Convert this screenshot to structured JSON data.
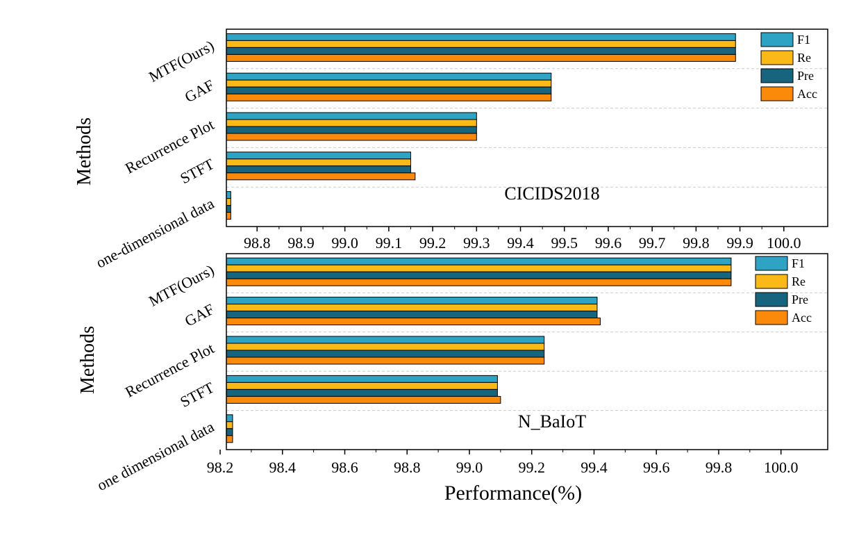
{
  "colors": {
    "F1": "#2ea3c4",
    "Re": "#fbb917",
    "Pre": "#17647e",
    "Acc": "#fb8a0b",
    "frame": "#000000",
    "grid": "#cccccc"
  },
  "chart_data": [
    {
      "type": "bar",
      "orientation": "horizontal",
      "annotation": "CICIDS2018",
      "ylabel": "Methods",
      "xlabel": "",
      "categories": [
        "MTF(Ours)",
        "GAF",
        "Recurrence Plot",
        "STFT",
        "one-dimensional data"
      ],
      "series": [
        {
          "name": "F1",
          "values": [
            99.89,
            99.47,
            99.3,
            99.15,
            98.74
          ]
        },
        {
          "name": "Re",
          "values": [
            99.89,
            99.47,
            99.3,
            99.15,
            98.74
          ]
        },
        {
          "name": "Pre",
          "values": [
            99.89,
            99.47,
            99.3,
            99.15,
            98.74
          ]
        },
        {
          "name": "Acc",
          "values": [
            99.89,
            99.47,
            99.3,
            99.16,
            98.74
          ]
        }
      ],
      "xlim": [
        98.73,
        100.1
      ],
      "xticks": [
        "98.8",
        "98.9",
        "99.0",
        "99.1",
        "99.2",
        "99.3",
        "99.4",
        "99.5",
        "99.6",
        "99.7",
        "99.8",
        "99.9",
        "100.0"
      ],
      "legend": [
        "F1",
        "Re",
        "Pre",
        "Acc"
      ],
      "legend_position": "top-right",
      "grid": "horizontal dashed"
    },
    {
      "type": "bar",
      "orientation": "horizontal",
      "annotation": "N_BaIoT",
      "ylabel": "Methods",
      "xlabel": "Performance(%)",
      "categories": [
        "MTF(Ours)",
        "GAF",
        "Recurrence Plot",
        "STFT",
        "one dimensional data"
      ],
      "series": [
        {
          "name": "F1",
          "values": [
            99.84,
            99.41,
            99.24,
            99.09,
            98.24
          ]
        },
        {
          "name": "Re",
          "values": [
            99.84,
            99.41,
            99.24,
            99.09,
            98.24
          ]
        },
        {
          "name": "Pre",
          "values": [
            99.84,
            99.41,
            99.24,
            99.09,
            98.24
          ]
        },
        {
          "name": "Acc",
          "values": [
            99.84,
            99.42,
            99.24,
            99.1,
            98.24
          ]
        }
      ],
      "xlim": [
        98.22,
        100.15
      ],
      "xticks": [
        "98.2",
        "98.4",
        "98.6",
        "98.8",
        "99.0",
        "99.2",
        "99.4",
        "99.6",
        "99.8",
        "100.0"
      ],
      "legend": [
        "F1",
        "Re",
        "Pre",
        "Acc"
      ],
      "legend_position": "top-right",
      "grid": "horizontal dashed"
    }
  ]
}
